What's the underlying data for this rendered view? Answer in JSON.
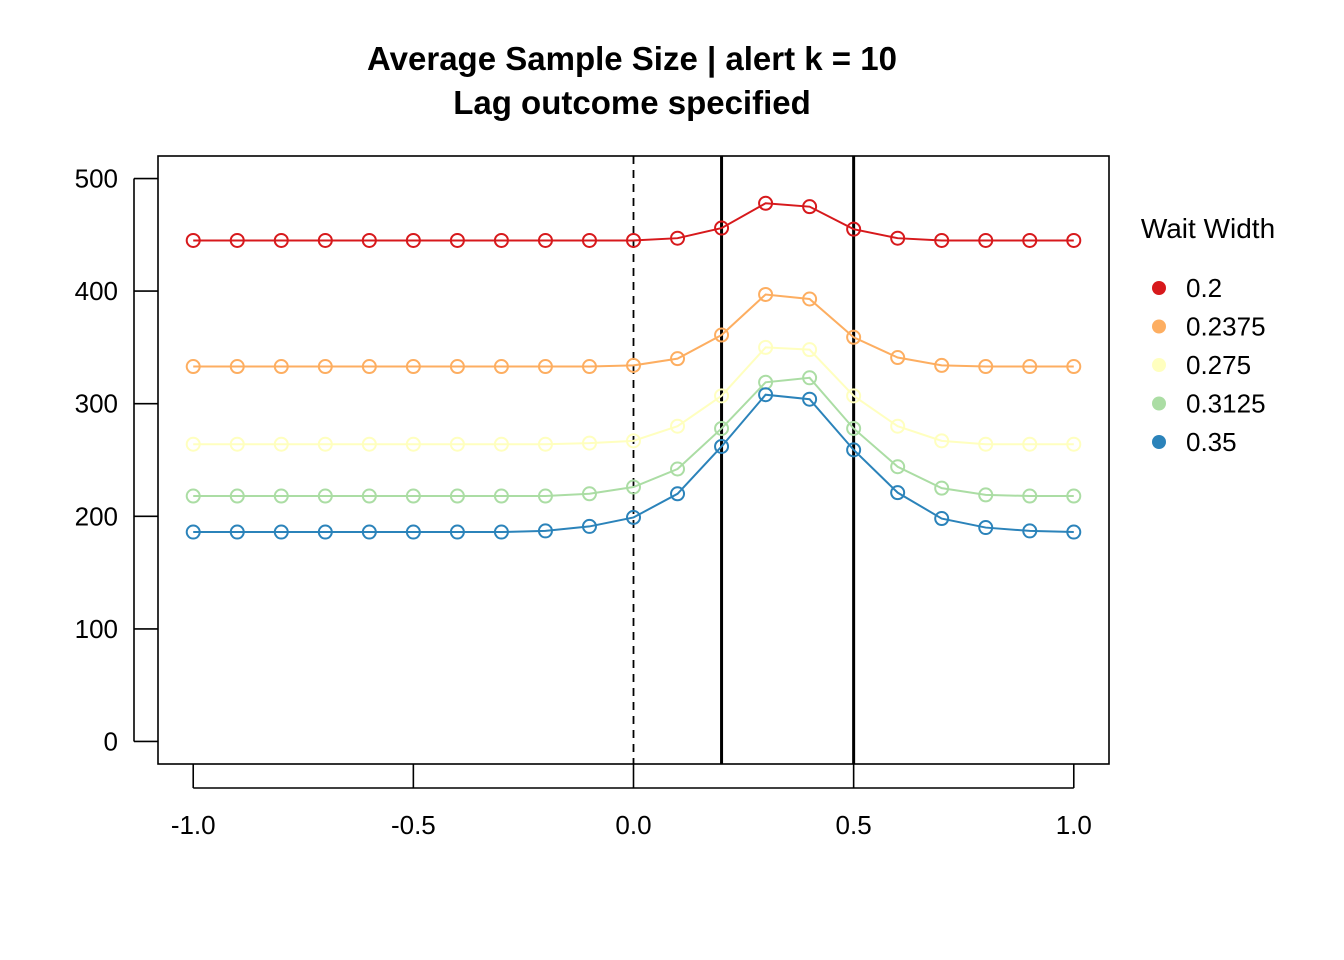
{
  "chart_data": {
    "type": "line",
    "title": "Average Sample Size | alert k = 10",
    "subtitle": "Lag outcome specified",
    "xlabel": "",
    "ylabel": "",
    "xlim": [
      -1.08,
      1.08
    ],
    "ylim": [
      -20,
      520
    ],
    "x_ticks": [
      -1.0,
      -0.5,
      0.0,
      0.5,
      1.0
    ],
    "x_tick_labels": [
      "-1.0",
      "-0.5",
      "0.0",
      "0.5",
      "1.0"
    ],
    "y_ticks": [
      0,
      100,
      200,
      300,
      400,
      500
    ],
    "y_tick_labels": [
      "0",
      "100",
      "200",
      "300",
      "400",
      "500"
    ],
    "grid": false,
    "marker": "open-circle",
    "reference_lines": [
      {
        "x": 0.0,
        "style": "dashed"
      },
      {
        "x": 0.2,
        "style": "solid"
      },
      {
        "x": 0.5,
        "style": "solid"
      }
    ],
    "legend": {
      "title": "Wait Width",
      "position": "right"
    },
    "x": [
      -1.0,
      -0.9,
      -0.8,
      -0.7,
      -0.6,
      -0.5,
      -0.4,
      -0.3,
      -0.2,
      -0.1,
      0.0,
      0.1,
      0.2,
      0.3,
      0.4,
      0.5,
      0.6,
      0.7,
      0.8,
      0.9,
      1.0
    ],
    "series": [
      {
        "name": "0.2",
        "color": "#D7191C",
        "values": [
          445,
          445,
          445,
          445,
          445,
          445,
          445,
          445,
          445,
          445,
          445,
          447,
          456,
          478,
          475,
          455,
          447,
          445,
          445,
          445,
          445
        ]
      },
      {
        "name": "0.2375",
        "color": "#FDAE61",
        "values": [
          333,
          333,
          333,
          333,
          333,
          333,
          333,
          333,
          333,
          333,
          334,
          340,
          361,
          397,
          393,
          359,
          341,
          334,
          333,
          333,
          333
        ]
      },
      {
        "name": "0.275",
        "color": "#FFFFBF",
        "values": [
          264,
          264,
          264,
          264,
          264,
          264,
          264,
          264,
          264,
          265,
          267,
          280,
          307,
          350,
          348,
          307,
          280,
          267,
          264,
          264,
          264
        ]
      },
      {
        "name": "0.3125",
        "color": "#ABDDA4",
        "values": [
          218,
          218,
          218,
          218,
          218,
          218,
          218,
          218,
          218,
          220,
          226,
          242,
          278,
          319,
          323,
          278,
          244,
          225,
          219,
          218,
          218
        ]
      },
      {
        "name": "0.35",
        "color": "#2B83BA",
        "values": [
          186,
          186,
          186,
          186,
          186,
          186,
          186,
          186,
          187,
          191,
          199,
          220,
          262,
          308,
          304,
          259,
          221,
          198,
          190,
          187,
          186
        ]
      }
    ]
  }
}
